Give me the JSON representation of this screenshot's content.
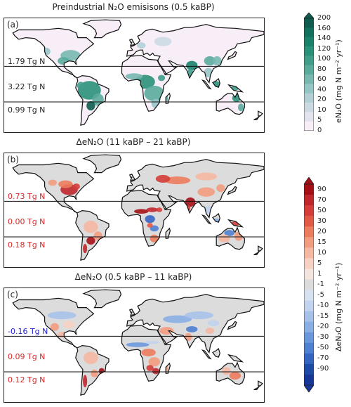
{
  "chart_data": [
    {
      "type": "heatmap",
      "panel": "(a)",
      "title": "Preindustrial N₂O emisisons (0.5 kaBP)",
      "band_totals": [
        {
          "label": "1.79 Tg N",
          "color": "#222222"
        },
        {
          "label": "3.22 Tg N",
          "color": "#222222"
        },
        {
          "label": "0.99 Tg N",
          "color": "#222222"
        }
      ]
    },
    {
      "type": "heatmap",
      "panel": "(b)",
      "title": "ΔeN₂O (11 kaBP – 21 kaBP)",
      "band_totals": [
        {
          "label": "0.73 Tg N",
          "color": "#d62728"
        },
        {
          "label": "0.00 Tg N",
          "color": "#d62728"
        },
        {
          "label": "0.18 Tg N",
          "color": "#d62728"
        }
      ]
    },
    {
      "type": "heatmap",
      "panel": "(c)",
      "title": "ΔeN₂O (0.5 kaBP – 11 kaBP)",
      "band_totals": [
        {
          "label": "-0.16 Tg N",
          "color": "#1f1fd6"
        },
        {
          "label": "0.09 Tg N",
          "color": "#d62728"
        },
        {
          "label": "0.12 Tg N",
          "color": "#d62728"
        }
      ]
    }
  ],
  "colorbars": {
    "emission": {
      "label": "eN₂O (mg N m⁻² yr⁻¹)",
      "ticks": [
        "200",
        "160",
        "140",
        "120",
        "100",
        "80",
        "60",
        "40",
        "20",
        "10",
        "5",
        "0"
      ],
      "colors": [
        "#0d5c4d",
        "#12705e",
        "#1a826b",
        "#2a9179",
        "#3f9d8a",
        "#5aaa9c",
        "#78b8b0",
        "#96c5c5",
        "#b2cfd6",
        "#cbd9e3",
        "#e3e3ee",
        "#f7eef7"
      ]
    },
    "delta": {
      "label": "ΔeN₂O (mg N m⁻² yr⁻¹)",
      "ticks": [
        "90",
        "70",
        "50",
        "30",
        "20",
        "15",
        "10",
        "5",
        "1",
        "-1",
        "-5",
        "-10",
        "-15",
        "-20",
        "-30",
        "-50",
        "-70",
        "-90"
      ],
      "colors": [
        "#a50f15",
        "#c0272d",
        "#d43d3a",
        "#e25a47",
        "#ec7c5d",
        "#f29c80",
        "#f5b8a2",
        "#f6d1c4",
        "#f3e4dd",
        "#dcdcdc",
        "#d7e2f1",
        "#c1d3ee",
        "#a7c2ea",
        "#8aafe4",
        "#6b98dc",
        "#4f80d2",
        "#3565c3",
        "#1f4ba8",
        "#17379a"
      ]
    }
  }
}
